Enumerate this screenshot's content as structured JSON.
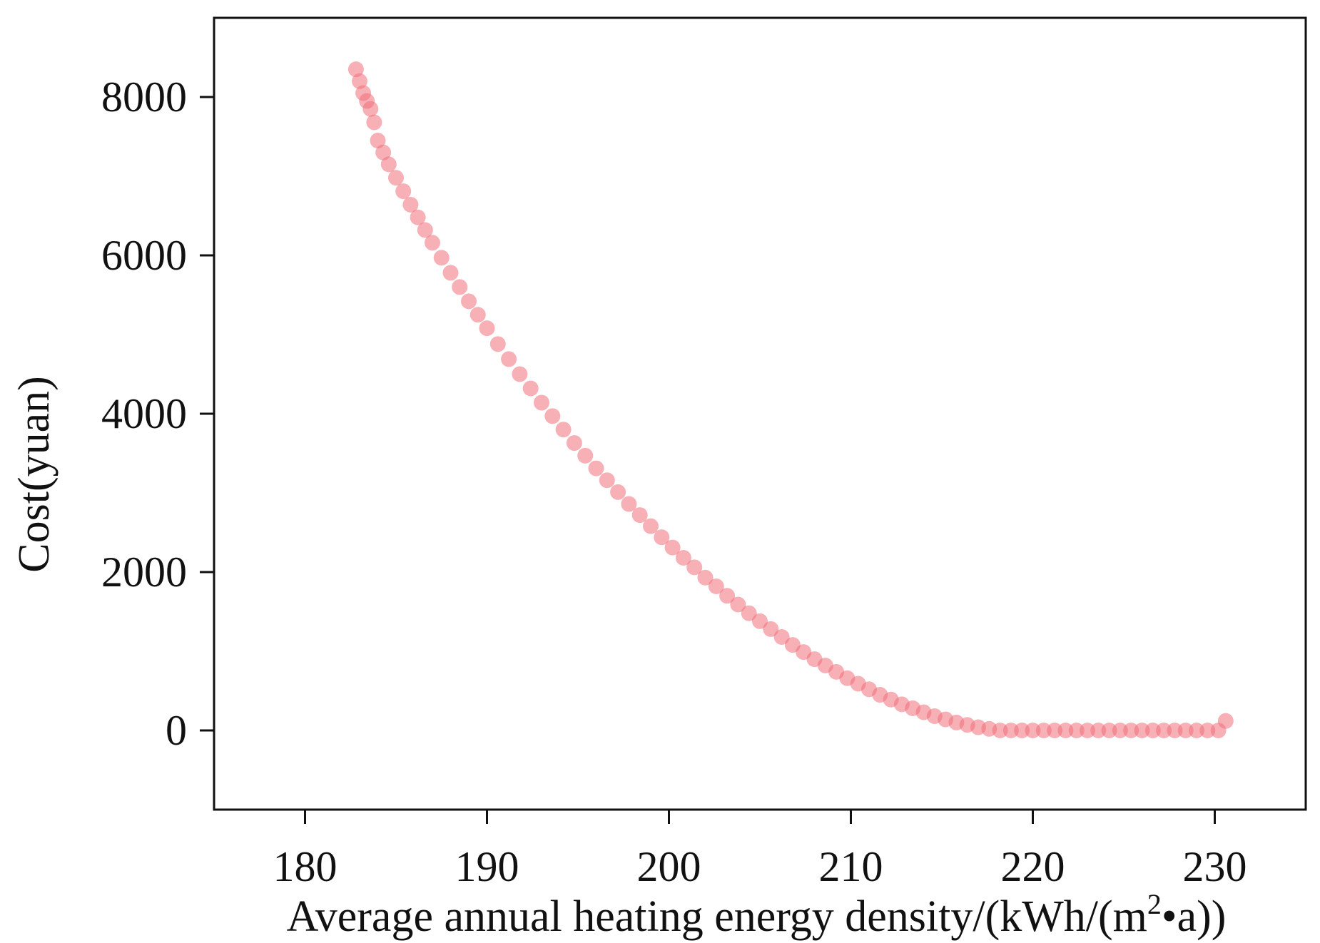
{
  "chart_data": {
    "type": "scatter",
    "title": "",
    "xlabel_parts": [
      "Average annual heating energy density/(kWh/(m",
      "2",
      "•a))"
    ],
    "ylabel": "Cost(yuan)",
    "xlim": [
      175,
      235
    ],
    "ylim": [
      -1000,
      9000
    ],
    "xticks": [
      180,
      190,
      200,
      210,
      220,
      230
    ],
    "yticks": [
      0,
      2000,
      4000,
      6000,
      8000
    ],
    "grid": false,
    "legend": "none",
    "marker_color": "#f0707a",
    "curve_model": "cost = 8350 * ((230.6 - x) / 47.8) ^ 1.48",
    "series": [
      {
        "x": [
          182.8,
          183.0,
          183.2,
          183.4,
          183.6,
          183.8,
          184.0,
          184.3,
          184.6,
          185.0,
          185.4,
          185.8,
          186.2,
          186.6,
          187.0,
          187.5,
          188.0,
          188.5,
          189.0,
          189.5,
          190.0,
          190.6,
          191.2,
          191.8,
          192.4,
          193.0,
          193.6,
          194.2,
          194.8,
          195.4,
          196.0,
          196.6,
          197.2,
          197.8,
          198.4,
          199.0,
          199.6,
          200.2,
          200.8,
          201.4,
          202.0,
          202.6,
          203.2,
          203.8,
          204.4,
          205.0,
          205.6,
          206.2,
          206.8,
          207.4,
          208.0,
          208.6,
          209.2,
          209.8,
          210.4,
          211.0,
          211.6,
          212.2,
          212.8,
          213.4,
          214.0,
          214.6,
          215.2,
          215.8,
          216.4,
          217.0,
          217.6,
          218.2,
          218.8,
          219.4,
          220.0,
          220.6,
          221.2,
          221.8,
          222.4,
          223.0,
          223.6,
          224.2,
          224.8,
          225.4,
          226.0,
          226.6,
          227.2,
          227.8,
          228.4,
          229.0,
          229.6,
          230.2,
          230.6
        ],
        "y": [
          8350,
          8200,
          8050,
          7950,
          7850,
          7680,
          7450,
          7300,
          7150,
          6980,
          6810,
          6640,
          6480,
          6320,
          6160,
          5970,
          5780,
          5600,
          5420,
          5250,
          5080,
          4880,
          4690,
          4500,
          4320,
          4140,
          3970,
          3800,
          3630,
          3470,
          3310,
          3160,
          3010,
          2860,
          2720,
          2580,
          2440,
          2310,
          2180,
          2060,
          1930,
          1820,
          1700,
          1590,
          1480,
          1380,
          1280,
          1180,
          1080,
          990,
          900,
          820,
          740,
          660,
          590,
          520,
          450,
          390,
          330,
          280,
          230,
          180,
          140,
          100,
          70,
          40,
          20,
          0,
          0,
          0,
          0,
          0,
          0,
          0,
          0,
          0,
          0,
          0,
          0,
          0,
          0,
          0,
          0,
          0,
          0,
          0,
          0,
          0,
          120
        ]
      }
    ]
  }
}
